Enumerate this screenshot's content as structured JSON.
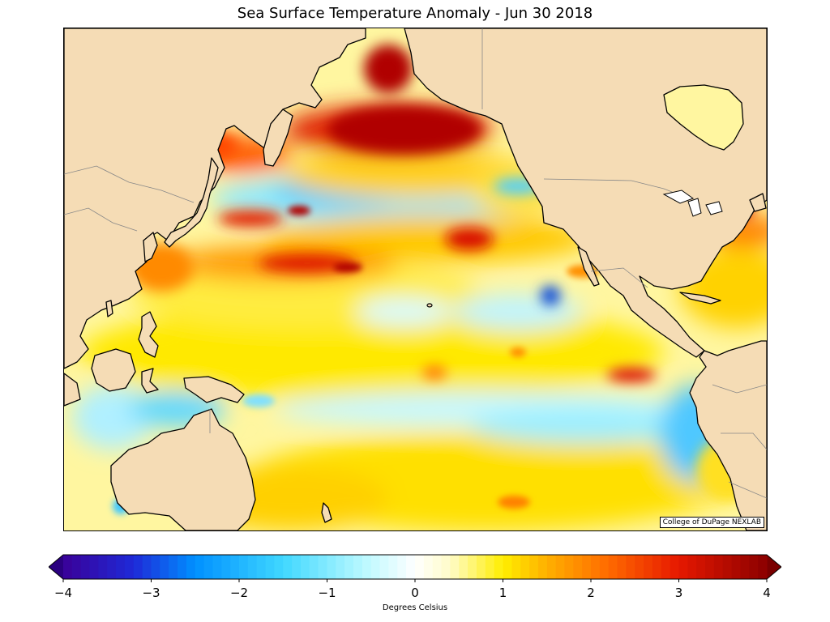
{
  "title": "Sea Surface Temperature Anomaly - Jun 30 2018",
  "credit": "College of DuPage NEXLAB",
  "colorbar": {
    "label": "Degrees Celsius",
    "min": -4,
    "max": 4,
    "ticks": [
      -4,
      -3,
      -2,
      -1,
      0,
      1,
      2,
      3,
      4
    ],
    "tick_labels": [
      "−4",
      "−3",
      "−2",
      "−1",
      "0",
      "1",
      "2",
      "3",
      "4"
    ],
    "extend": "both",
    "stops": [
      {
        "v": -4,
        "c": "#3a0098"
      },
      {
        "v": -3.2,
        "c": "#1e2ad8"
      },
      {
        "v": -2.5,
        "c": "#0090ff"
      },
      {
        "v": -1.5,
        "c": "#40d8ff"
      },
      {
        "v": -0.6,
        "c": "#b8f8ff"
      },
      {
        "v": 0,
        "c": "#ffffff"
      },
      {
        "v": 0.4,
        "c": "#fffbc8"
      },
      {
        "v": 1,
        "c": "#ffee00"
      },
      {
        "v": 1.5,
        "c": "#ffb000"
      },
      {
        "v": 2.2,
        "c": "#ff6a00"
      },
      {
        "v": 3,
        "c": "#e61800"
      },
      {
        "v": 4,
        "c": "#8b0000"
      }
    ],
    "under_color": "#2a0080",
    "over_color": "#7a0000"
  },
  "colors": {
    "land": "#f5dcb5",
    "coast": "#000000",
    "borders": "#888888"
  }
}
